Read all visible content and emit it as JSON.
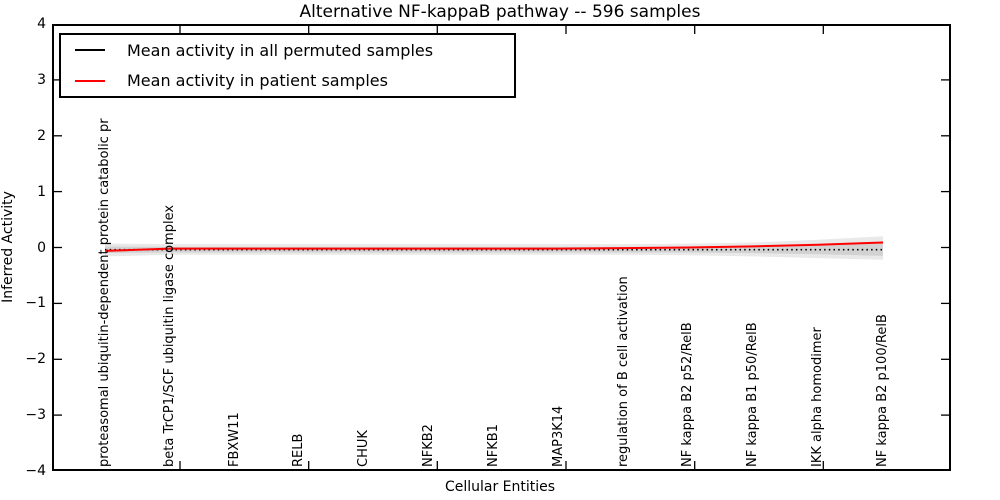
{
  "chart_data": {
    "type": "line",
    "title": "Alternative NF-kappaB pathway -- 596 samples",
    "xlabel": "Cellular Entities",
    "ylabel": "Inferred Activity",
    "ylim": [
      -4,
      4
    ],
    "yticks": [
      4,
      3,
      2,
      1,
      0,
      -1,
      -2,
      -3,
      -4
    ],
    "grid": false,
    "legend_position": "upper left",
    "categories": [
      "proteasomal ubiquitin-dependent protein catabolic pr",
      "beta TrCP1/SCF ubiquitin ligase complex",
      "FBXW11",
      "RELB",
      "CHUK",
      "NFKB2",
      "NFKB1",
      "MAP3K14",
      "regulation of B cell activation",
      "NF kappa B2 p52/RelB",
      "NF kappa B1 p50/RelB",
      "IKK alpha homodimer",
      "NF kappa B2 p100/RelB"
    ],
    "series": [
      {
        "name": "Mean activity in all permuted samples",
        "color": "#000000",
        "line_style": "dotted",
        "values": [
          -0.04,
          -0.04,
          -0.04,
          -0.04,
          -0.04,
          -0.04,
          -0.04,
          -0.04,
          -0.04,
          -0.04,
          -0.04,
          -0.04,
          -0.04
        ]
      },
      {
        "name": "Mean activity in patient samples",
        "color": "#ff0000",
        "line_style": "solid",
        "values": [
          -0.06,
          -0.02,
          -0.02,
          -0.02,
          -0.02,
          -0.02,
          -0.02,
          -0.02,
          -0.01,
          0.0,
          0.02,
          0.05,
          0.09
        ]
      }
    ],
    "uncertainty_band": {
      "outer_color": "#e9e9e9",
      "inner_color": "#d2d2d2",
      "outer_upper": [
        0.07,
        0.06,
        0.06,
        0.06,
        0.06,
        0.06,
        0.06,
        0.06,
        0.06,
        0.07,
        0.09,
        0.14,
        0.2
      ],
      "outer_lower": [
        -0.16,
        -0.13,
        -0.13,
        -0.13,
        -0.13,
        -0.13,
        -0.13,
        -0.13,
        -0.13,
        -0.14,
        -0.16,
        -0.19,
        -0.22
      ],
      "inner_upper": [
        0.02,
        0.01,
        0.01,
        0.01,
        0.01,
        0.01,
        0.01,
        0.01,
        0.01,
        0.02,
        0.03,
        0.06,
        0.11
      ],
      "inner_lower": [
        -0.1,
        -0.09,
        -0.09,
        -0.09,
        -0.09,
        -0.09,
        -0.09,
        -0.09,
        -0.09,
        -0.09,
        -0.1,
        -0.12,
        -0.15
      ]
    }
  },
  "colors": {
    "frame": "#000000",
    "background": "#ffffff"
  }
}
